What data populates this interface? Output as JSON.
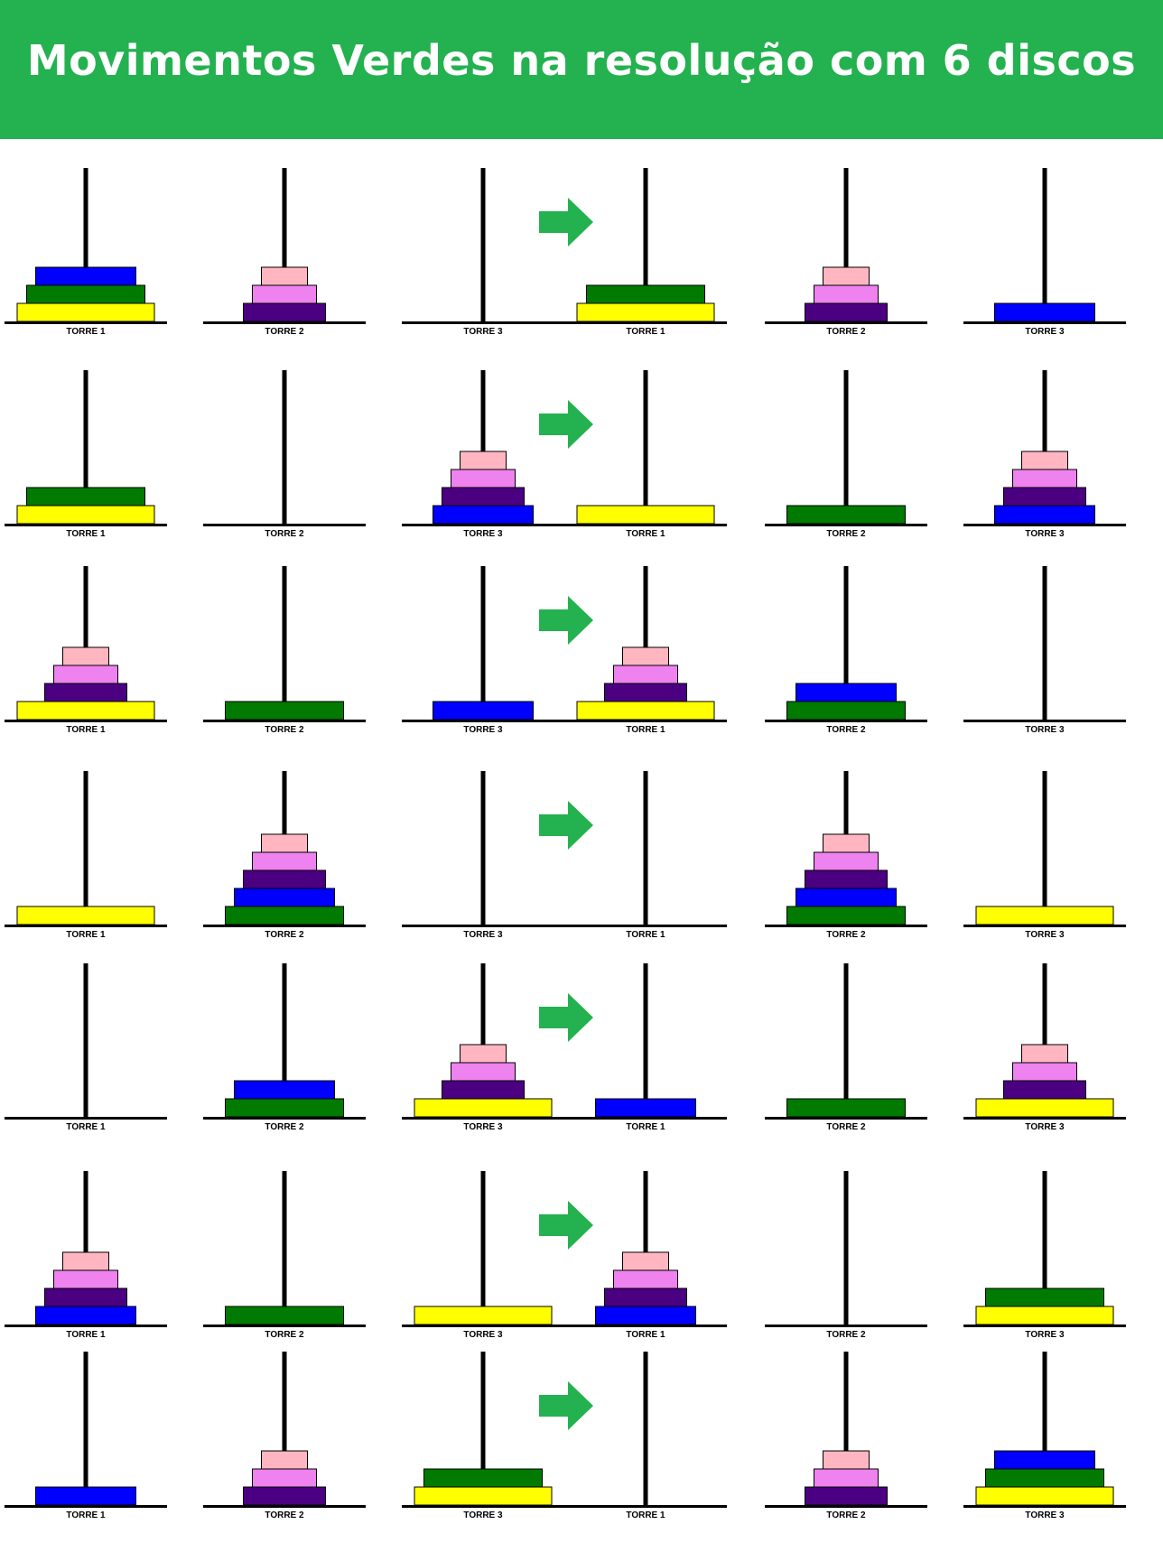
{
  "title": "Movimentos Verdes na resolução com 6 discos",
  "tower_labels": [
    "TORRE 1",
    "TORRE 2",
    "TORRE 3"
  ],
  "colors": {
    "header": "#24b14f",
    "arrow": "#24b14f",
    "yellow": "#ffff00",
    "green": "#007a00",
    "blue": "#0000ff",
    "indigo": "#4b0082",
    "violet": "#ee82ee",
    "pink": "#ffb6c1"
  },
  "disk_order_largest_to_smallest": [
    "yellow",
    "green",
    "blue",
    "indigo",
    "violet",
    "pink"
  ],
  "moves": [
    {
      "before": [
        [
          "yellow",
          "green",
          "blue"
        ],
        [
          "indigo",
          "violet",
          "pink"
        ],
        []
      ],
      "after": [
        [
          "yellow",
          "green"
        ],
        [
          "indigo",
          "violet",
          "pink"
        ],
        [
          "blue"
        ]
      ]
    },
    {
      "before": [
        [
          "yellow",
          "green"
        ],
        [],
        [
          "blue",
          "indigo",
          "violet",
          "pink"
        ]
      ],
      "after": [
        [
          "yellow"
        ],
        [
          "green"
        ],
        [
          "blue",
          "indigo",
          "violet",
          "pink"
        ]
      ]
    },
    {
      "before": [
        [
          "yellow",
          "indigo",
          "violet",
          "pink"
        ],
        [
          "green"
        ],
        [
          "blue"
        ]
      ],
      "after": [
        [
          "yellow",
          "indigo",
          "violet",
          "pink"
        ],
        [
          "green",
          "blue"
        ],
        []
      ]
    },
    {
      "before": [
        [
          "yellow"
        ],
        [
          "green",
          "blue",
          "indigo",
          "violet",
          "pink"
        ],
        []
      ],
      "after": [
        [],
        [
          "green",
          "blue",
          "indigo",
          "violet",
          "pink"
        ],
        [
          "yellow"
        ]
      ]
    },
    {
      "before": [
        [],
        [
          "green",
          "blue"
        ],
        [
          "yellow",
          "indigo",
          "violet",
          "pink"
        ]
      ],
      "after": [
        [
          "blue"
        ],
        [
          "green"
        ],
        [
          "yellow",
          "indigo",
          "violet",
          "pink"
        ]
      ]
    },
    {
      "before": [
        [
          "blue",
          "indigo",
          "violet",
          "pink"
        ],
        [
          "green"
        ],
        [
          "yellow"
        ]
      ],
      "after": [
        [
          "blue",
          "indigo",
          "violet",
          "pink"
        ],
        [],
        [
          "yellow",
          "green"
        ]
      ]
    },
    {
      "before": [
        [
          "blue"
        ],
        [
          "indigo",
          "violet",
          "pink"
        ],
        [
          "yellow",
          "green"
        ]
      ],
      "after": [
        [],
        [
          "indigo",
          "violet",
          "pink"
        ],
        [
          "yellow",
          "green",
          "blue"
        ]
      ]
    }
  ]
}
